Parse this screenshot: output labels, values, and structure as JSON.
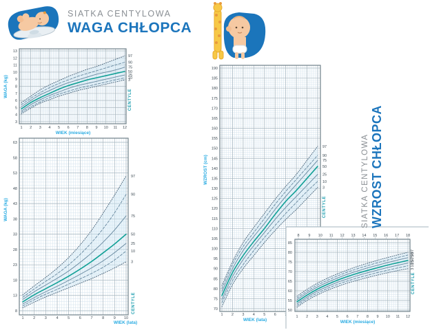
{
  "header_left": {
    "subtitle": "SIATKA CENTYLOWA",
    "title": "WAGA CHŁOPCA"
  },
  "header_right": {
    "subtitle": "SIATKA CENTYLOWA",
    "title": "WZROST CHŁOPCA"
  },
  "colors": {
    "brand_blue": "#1c75bc",
    "muted_gray": "#8a8f94",
    "axis_cyan": "#29abe2",
    "centile_teal": "#1f9fb0",
    "curve_main": "#12a096",
    "curve_other": "#66879e",
    "curve_dotted": "#4a6378",
    "grid_minor": "#d3e3ee",
    "grid_major": "#a4b4be",
    "frame": "#6f8089",
    "band": "#cfe7f4",
    "tick_text": "#3f4c55"
  },
  "chart_data": [
    {
      "id": "weight-by-month",
      "type": "line",
      "xlabel": "WIEK (miesiące)",
      "ylabel": "WAGA (kg)",
      "right_axis_label": "CENTYLE",
      "xlim": [
        1,
        12
      ],
      "ylim": [
        3,
        13
      ],
      "xtick_step": 1,
      "ytick_step": 1,
      "x": [
        1,
        2,
        3,
        4,
        5,
        6,
        7,
        8,
        9,
        10,
        11,
        12
      ],
      "series": [
        {
          "name": "97",
          "style": "dotted",
          "values": [
            5.7,
            6.6,
            7.5,
            8.2,
            8.8,
            9.4,
            9.9,
            10.4,
            10.8,
            11.3,
            11.8,
            12.3
          ]
        },
        {
          "name": "90",
          "style": "dashed",
          "values": [
            5.4,
            6.3,
            7.1,
            7.8,
            8.4,
            8.9,
            9.4,
            9.8,
            10.2,
            10.6,
            11.0,
            11.4
          ]
        },
        {
          "name": "75",
          "style": "solid",
          "values": [
            5.1,
            6.0,
            6.8,
            7.4,
            8.0,
            8.5,
            8.9,
            9.3,
            9.7,
            10.0,
            10.3,
            10.7
          ]
        },
        {
          "name": "50",
          "style": "main",
          "values": [
            4.8,
            5.7,
            6.4,
            7.0,
            7.6,
            8.1,
            8.5,
            8.9,
            9.2,
            9.5,
            9.8,
            10.1
          ]
        },
        {
          "name": "25",
          "style": "solid",
          "values": [
            4.5,
            5.4,
            6.1,
            6.7,
            7.2,
            7.7,
            8.1,
            8.4,
            8.7,
            9.0,
            9.3,
            9.6
          ]
        },
        {
          "name": "10",
          "style": "dashed",
          "values": [
            4.3,
            5.1,
            5.8,
            6.4,
            6.9,
            7.3,
            7.7,
            8.0,
            8.3,
            8.6,
            8.9,
            9.2
          ]
        },
        {
          "name": "3",
          "style": "dotted",
          "values": [
            4.1,
            4.9,
            5.6,
            6.1,
            6.6,
            7.0,
            7.4,
            7.7,
            8.0,
            8.3,
            8.6,
            8.9
          ]
        }
      ]
    },
    {
      "id": "weight-by-year",
      "type": "line",
      "xlabel": "WIEK (lata)",
      "ylabel": "WAGA (kg)",
      "right_axis_label": "CENTYLE",
      "xlim": [
        1,
        10
      ],
      "ylim": [
        8,
        63
      ],
      "xtick_step": 1,
      "ytick_step": 5,
      "x": [
        1,
        2,
        3,
        4,
        5,
        6,
        7,
        8,
        9,
        10
      ],
      "series": [
        {
          "name": "97",
          "style": "dotted",
          "values": [
            13.2,
            16.1,
            18.9,
            21.9,
            25.4,
            29.5,
            34.3,
            39.9,
            45.8,
            52.0
          ]
        },
        {
          "name": "90",
          "style": "dashed",
          "values": [
            12.4,
            15.1,
            17.6,
            20.1,
            23.0,
            26.4,
            30.3,
            34.8,
            40.0,
            46.0
          ]
        },
        {
          "name": "75",
          "style": "solid",
          "values": [
            11.7,
            14.2,
            16.4,
            18.6,
            21.0,
            23.8,
            26.9,
            30.4,
            34.4,
            39.0
          ]
        },
        {
          "name": "50",
          "style": "main",
          "values": [
            10.9,
            13.2,
            15.2,
            17.2,
            19.3,
            21.6,
            24.1,
            26.9,
            29.8,
            33.0
          ]
        },
        {
          "name": "25",
          "style": "solid",
          "values": [
            10.2,
            12.3,
            14.2,
            16.0,
            17.9,
            19.9,
            22.0,
            24.3,
            27.0,
            30.0
          ]
        },
        {
          "name": "10",
          "style": "dashed",
          "values": [
            9.6,
            11.6,
            13.4,
            15.0,
            16.7,
            18.4,
            20.2,
            22.2,
            24.6,
            27.5
          ]
        },
        {
          "name": "3",
          "style": "dotted",
          "values": [
            9.0,
            10.8,
            12.5,
            14.0,
            15.5,
            17.0,
            18.5,
            20.2,
            22.0,
            24.0
          ]
        }
      ]
    },
    {
      "id": "height-by-year",
      "type": "line",
      "xlabel": "WIEK (lata)",
      "ylabel": "WZROST (cm)",
      "right_axis_label": "CENTYLE",
      "xlim": [
        1,
        10
      ],
      "ylim": [
        70,
        190
      ],
      "xtick_step": 1,
      "ytick_step": 5,
      "x": [
        1,
        2,
        3,
        4,
        5,
        6,
        7,
        8,
        9,
        10
      ],
      "series": [
        {
          "name": "97",
          "style": "dotted",
          "values": [
            81.5,
            93.5,
            103,
            110.5,
            117.5,
            124.5,
            131,
            137,
            144,
            151
          ]
        },
        {
          "name": "90",
          "style": "dashed",
          "values": [
            80,
            92,
            101,
            108,
            115,
            122,
            128.5,
            134.5,
            140.5,
            146.5
          ]
        },
        {
          "name": "75",
          "style": "solid",
          "values": [
            78.5,
            90,
            99,
            106,
            112.5,
            119.5,
            126,
            132,
            138,
            144
          ]
        },
        {
          "name": "50",
          "style": "main",
          "values": [
            76.5,
            88,
            96.5,
            103.5,
            110,
            117,
            123.5,
            129,
            135,
            141
          ]
        },
        {
          "name": "25",
          "style": "solid",
          "values": [
            74.5,
            86,
            94.5,
            101.5,
            108,
            114.5,
            120.5,
            126,
            131.5,
            137
          ]
        },
        {
          "name": "10",
          "style": "dashed",
          "values": [
            73,
            84,
            92,
            99,
            105.5,
            111.5,
            117.5,
            123,
            128.5,
            133.5
          ]
        },
        {
          "name": "3",
          "style": "dotted",
          "values": [
            71,
            82,
            90,
            96.5,
            103,
            109,
            114.5,
            119.5,
            125,
            130.5
          ]
        }
      ]
    },
    {
      "id": "height-by-month",
      "type": "line",
      "xlabel": "WIEK (miesiące)",
      "ylabel": "",
      "right_axis_label": "CENTYLE",
      "xlim": [
        1,
        12
      ],
      "ylim": [
        50,
        85
      ],
      "xtick_step": 1,
      "ytick_step": 5,
      "top_axis_ticks": [
        8,
        9,
        10,
        11,
        12,
        13,
        14,
        15,
        16,
        17,
        18
      ],
      "x": [
        1,
        2,
        3,
        4,
        5,
        6,
        7,
        8,
        9,
        10,
        11,
        12
      ],
      "series": [
        {
          "name": "97",
          "style": "dotted",
          "values": [
            57.2,
            60.8,
            63.9,
            66.5,
            68.8,
            70.8,
            72.7,
            74.3,
            75.9,
            77.3,
            78.7,
            80
          ]
        },
        {
          "name": "90",
          "style": "dashed",
          "values": [
            56.2,
            59.8,
            62.9,
            65.4,
            67.7,
            69.7,
            71.5,
            73.1,
            74.6,
            76,
            77.3,
            78.6
          ]
        },
        {
          "name": "75",
          "style": "solid",
          "values": [
            55.3,
            58.9,
            61.9,
            64.4,
            66.6,
            68.6,
            70.3,
            71.9,
            73.3,
            74.7,
            76,
            77.2
          ]
        },
        {
          "name": "50",
          "style": "main",
          "values": [
            54.3,
            57.8,
            60.8,
            63.3,
            65.5,
            67.4,
            69.1,
            70.6,
            72,
            73.4,
            74.6,
            75.8
          ]
        },
        {
          "name": "25",
          "style": "solid",
          "values": [
            53.3,
            56.8,
            59.8,
            62.2,
            64.4,
            66.2,
            67.9,
            69.4,
            70.8,
            72.1,
            73.3,
            74.4
          ]
        },
        {
          "name": "10",
          "style": "dashed",
          "values": [
            52.4,
            55.9,
            58.8,
            61.2,
            63.3,
            65.1,
            66.7,
            68.1,
            69.5,
            70.7,
            71.9,
            73
          ]
        },
        {
          "name": "3",
          "style": "dotted",
          "values": [
            51.5,
            55,
            57.8,
            60.2,
            62.2,
            64,
            65.5,
            66.9,
            68.2,
            69.4,
            70.5,
            71.5
          ]
        }
      ]
    }
  ]
}
